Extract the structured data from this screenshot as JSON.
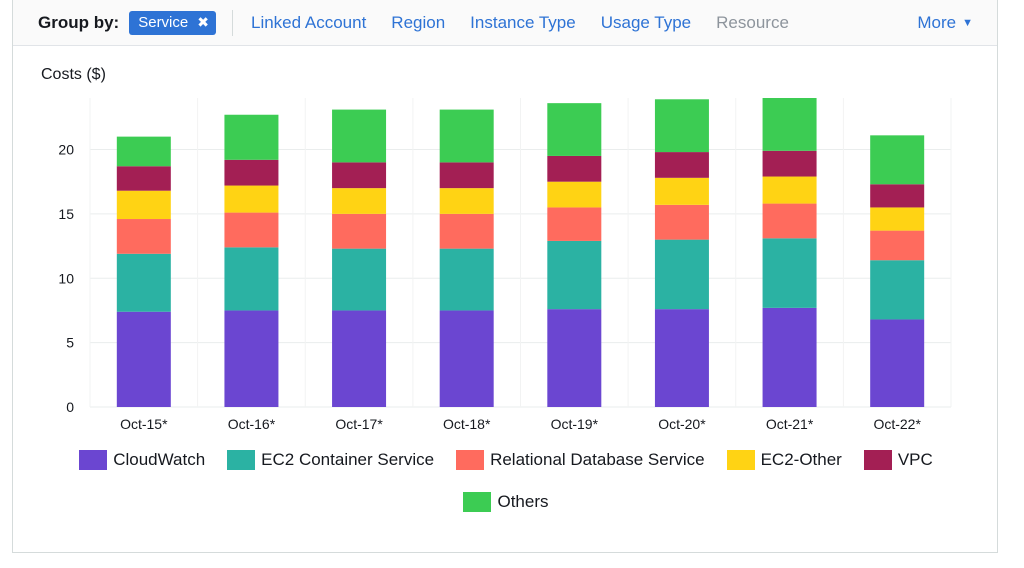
{
  "toolbar": {
    "group_by_label": "Group by:",
    "selected_token": "Service",
    "token_remove": "✖",
    "options": [
      "Linked Account",
      "Region",
      "Instance Type",
      "Usage Type"
    ],
    "disabled_option": "Resource",
    "more_label": "More",
    "more_caret": "▼"
  },
  "chart_data": {
    "type": "bar",
    "stacked": true,
    "ylabel": "Costs ($)",
    "ylim": [
      0,
      24
    ],
    "yticks": [
      0,
      5,
      10,
      15,
      20
    ],
    "grid": true,
    "legend_position": "bottom",
    "categories": [
      "Oct-15*",
      "Oct-16*",
      "Oct-17*",
      "Oct-18*",
      "Oct-19*",
      "Oct-20*",
      "Oct-21*",
      "Oct-22*"
    ],
    "series": [
      {
        "name": "CloudWatch",
        "color": "#6b46d1",
        "values": [
          7.4,
          7.5,
          7.5,
          7.5,
          7.6,
          7.6,
          7.7,
          6.8
        ]
      },
      {
        "name": "EC2 Container Service",
        "color": "#2bb2a3",
        "values": [
          4.5,
          4.9,
          4.8,
          4.8,
          5.3,
          5.4,
          5.4,
          4.6
        ]
      },
      {
        "name": "Relational Database Service",
        "color": "#ff6b5e",
        "values": [
          2.7,
          2.7,
          2.7,
          2.7,
          2.6,
          2.7,
          2.7,
          2.3
        ]
      },
      {
        "name": "EC2-Other",
        "color": "#ffd314",
        "values": [
          2.2,
          2.1,
          2.0,
          2.0,
          2.0,
          2.1,
          2.1,
          1.8
        ]
      },
      {
        "name": "VPC",
        "color": "#a31f54",
        "values": [
          1.9,
          2.0,
          2.0,
          2.0,
          2.0,
          2.0,
          2.0,
          1.8
        ]
      },
      {
        "name": "Others",
        "color": "#3ccc53",
        "values": [
          2.3,
          3.5,
          4.1,
          4.1,
          4.1,
          4.1,
          4.1,
          3.8
        ]
      }
    ]
  }
}
